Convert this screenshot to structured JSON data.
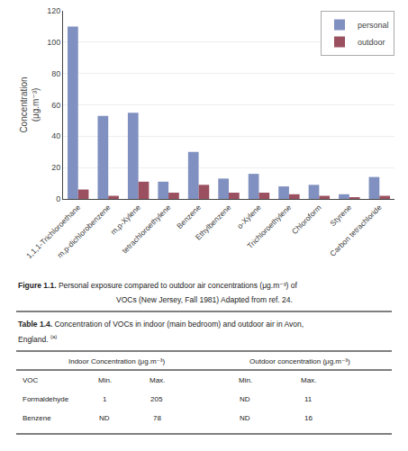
{
  "chart_data": [
    {
      "type": "bar",
      "categories": [
        "1,1,1-Trichloroethane",
        "m,p-dichlorobenzene",
        "m,p-Xylene",
        "tetrachloroethylene",
        "Benzene",
        "Ethylbenzene",
        "o-Xylene",
        "Trichloroethylene",
        "Chloroform",
        "Styrene",
        "Carbon tetrachloride"
      ],
      "series": [
        {
          "name": "personal",
          "color": "#8090c0",
          "values": [
            110,
            53,
            55,
            11,
            30,
            13,
            16,
            8,
            9,
            3,
            14
          ]
        },
        {
          "name": "outdoor",
          "color": "#9b5060",
          "values": [
            6,
            2,
            11,
            4,
            9,
            4,
            4,
            3,
            2,
            1,
            2
          ]
        }
      ],
      "ylabel": [
        "Concentration",
        "(μg.m⁻³)"
      ],
      "ylim": [
        0,
        120
      ],
      "yticks": [
        0,
        20,
        40,
        60,
        80,
        100,
        120
      ],
      "grid": true,
      "legend": "upper right",
      "caption": {
        "label": "Figure 1.1.",
        "text": [
          "Personal exposure compared to outdoor air concentrations (μg.m⁻³) of",
          "VOCs (New Jersey, Fall 1981) Adapted from ref. 24."
        ]
      }
    },
    {
      "type": "table",
      "label": "Table 1.4.",
      "title": [
        "Concentration of VOCs in indoor (main bedroom) and outdoor air in Avon,",
        "England."
      ],
      "note": "(a)",
      "header_groups": [
        "Indoor Concentration (μg.m⁻³)",
        "Outdoor concentration (μg.m⁻³)"
      ],
      "columns": [
        "VOC",
        "Min.",
        "Max.",
        "Min.",
        "Max."
      ],
      "rows": [
        [
          "Formaldehyde",
          "1",
          "205",
          "ND",
          "11"
        ],
        [
          "Benzene",
          "ND",
          "78",
          "ND",
          "16"
        ]
      ]
    }
  ]
}
